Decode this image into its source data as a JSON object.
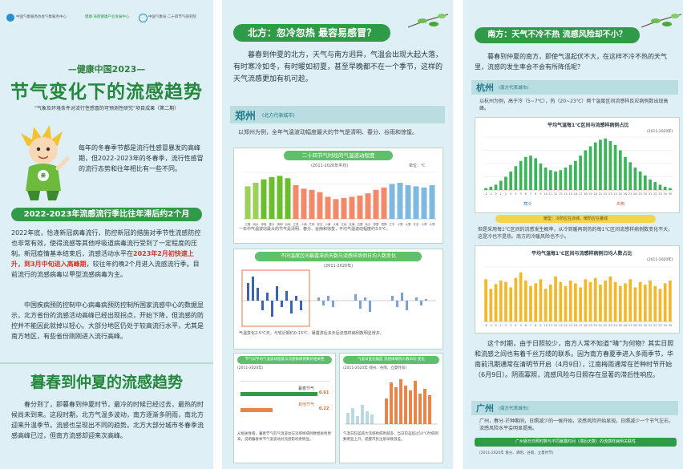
{
  "panel1": {
    "logos": [
      "中国气象服务协会气象服务中心",
      "健康·海南健康产业发展中心",
      "中国气象局·二十四节气研究院"
    ],
    "subtitle": "—健康中国2023—",
    "title": "节气变化下的流感趋势",
    "project_note": "“气象及环境条件对流行性感冒的可预测性研究”项目成果（第二期）",
    "intro": "每年的冬春季节都是流行性感冒暴发的高峰期，但2022-2023年的冬春季，流行性感冒的流行态势和往年相比有一些不同。",
    "section1_title": "2022-2023年流感流行季比往年滞后约2个月",
    "section1_text_a": "2022年底，恰逢新冠病毒流行，防控新冠的措施对季节性流感防控也非常有效，使得流感等其他呼吸道病毒流行受到了一定程度的压制。新冠疫情基本结束后，流感活动水平在",
    "section1_highlight": "2023年2月初快速上升，到3月中旬进入高峰期",
    "section1_text_b": "，较往年约晚2个月进入流感流行季。目前流行的流感病毒以甲型流感病毒为主。",
    "section1_text_c": "中国疾病预防控制中心病毒病预防控制所国家流感中心的数据显示，北方省份的流感活动高峰已经出现拐点，开始下降，但流感的防控并不能因此就掉以轻心。大部分地区仍处于较高流行水平，尤其是南方地区，有些省份刚刚进入流行高峰。",
    "section2_title": "暮春到仲夏的流感趋势",
    "section2_text": "春分到了，即暮春到仲夏时节，最冷的时候已经过去，最热的时候尚未到来。这段时期，北方气温多波动，南方逐渐多阴雨，南北方迎来升温季节。流感也呈现出不同的趋势。北方大部分城市冬春季流感高峰已过，但南方流感却迎来次高峰。",
    "mascot_badge": "秦"
  },
  "panel2": {
    "title": "北方：忽冷忽热 最容易感冒？",
    "intro": "暮春到仲夏的北方，天气与南方迥异，气温会出现大起大落，有时寒冷如冬，有时暖如初夏，甚至早晚都不在一个季节，这样的天气流感更加有机可趁。",
    "city": "郑州",
    "city_note": "(北方代表城市)",
    "city_text": "以郑州为例，全年气温波动幅度最大的节气是清明、春分、谷雨和惊蛰。",
    "chart1_title": "二十四节气时段的气温波动程度",
    "chart1_period": "(2011-2020年平均)",
    "chart1_unit": "单位：℃",
    "chart1_caption": "一年中气温波动最大的节气是清明、春分、谷雨和惊蛰，平均气温波动幅度约3.5℃。",
    "chart2_title": "不同温度区间暴露滞后天数与流感样病例日均人数变化",
    "chart2_period": "(2011-2020年)",
    "chart2_caption": "气温变化2-5℃天，与较近期约0-15℃，暴露滞后多天后流感样病例数明显增多。",
    "chart3_title": "节气日平均气温波动程度与流感样病例数的相关性",
    "chart3_period": "(2011-2020年)",
    "chart3_row1": "暮春节气",
    "chart3_row1_val": "0.61",
    "chart3_row2": "其他节气",
    "chart3_row2_val": "0.22",
    "chart3_caption": "从相关性看，暮春节气的气温波动与流感样病例数相关性更高，说明暮春季节气温波动对流感影响更明显。",
    "chart4_title": "气温日变化幅度 流感样病例人数日均 变化",
    "chart4_period": "(2011-2020年 郑州、谷雨、立夏时间)",
    "chart4_caption": "气温日较差越大流感样病例越多，当日较差超过10℃时病例数明显上升，提醒市民注意早晚温差。"
  },
  "panel3": {
    "title": "南方：天气不冷不热 流感风险却不小？",
    "intro": "暮春到仲夏的南方，即使气温起伏不大，在这样不冷不热的天气里，流感的发生率会不会有所降低呢？",
    "city1": "杭州",
    "city1_note": "(南方代表城市)",
    "city1_text": "以杭州为例，高于冷（5~7℃），热（20~23℃）两个温度区间流感样反应病例数出现高峰。",
    "chart1_title": "平均气温每1℃区间与流感样病例占比",
    "chart1_period": "(2011-2020年)",
    "cold_label": "寒冷",
    "hot_label": "炎热",
    "chart1_note": "暖型：冷防应在凉城、暖防应在暑城",
    "mid_text": "但是采用每1℃区间的流感发生概率，从冷到暖再到热的每1℃区间流感样病例数变化不大，这是冷也不是热。南方的冷暖风险也不小。",
    "chart2_title": "平均气温每1℃区间与流感样病例日均人数占比",
    "chart2_period": "(2011-2020年)",
    "main_text_a": "这个时期，由于日照较少，南方人常不知道“晴”为何物？其实日照和流感之间也有着千丝万缕的联系。因为南方春夏季进入多雨季节，华南前汛期通常在清明节开启（4月9日），江南梅雨通常在芒种时节开始（6月9日）。阴雨寡照，流感风险与日照存在显著的滞后性响应。",
    "city2": "广州",
    "city2_note": "(南方代表城市)",
    "city2_text": "广州，春分-芒种期间，日照减少的一候开始，流感风险开始显现。日照减少一个节气左右，流感风险水平会明显提高。",
    "chart3_title": "广州逐日日照时数与不同暴露时间（滞后天数）的流感样病例关联性",
    "chart3_period": "(2011-2020年 春分、清明、谷雨、立夏时节)"
  },
  "chart_data": [
    {
      "type": "bar",
      "title": "二十四节气时段的气温波动程度",
      "ylabel": "单位：℃",
      "categories": [
        "立春",
        "雨水",
        "惊蛰",
        "春分",
        "清明",
        "谷雨",
        "立夏",
        "小满",
        "芒种",
        "夏至",
        "小暑",
        "大暑",
        "立秋",
        "处暑",
        "白露",
        "秋分",
        "寒露",
        "霜降",
        "立冬",
        "小雪",
        "大雪",
        "冬至",
        "小寒",
        "大寒"
      ],
      "values": [
        2.8,
        3.1,
        3.4,
        3.6,
        3.7,
        3.5,
        2.9,
        2.6,
        2.5,
        2.3,
        1.9,
        1.7,
        1.8,
        1.9,
        2.0,
        2.2,
        2.5,
        2.7,
        3.0,
        3.1,
        2.9,
        2.8,
        2.7,
        2.9
      ],
      "ylim": [
        0,
        4
      ]
    },
    {
      "type": "bar",
      "title": "平均气温每1℃区间与流感样病例占比",
      "categories": [
        "-2",
        "-1",
        "0",
        "1",
        "2",
        "3",
        "4",
        "5",
        "6",
        "7",
        "8",
        "9",
        "10",
        "11",
        "12",
        "13",
        "14",
        "15",
        "16",
        "17",
        "18",
        "19",
        "20",
        "21",
        "22",
        "23",
        "24",
        "25",
        "26",
        "27",
        "28",
        "29",
        "30",
        "31",
        "32",
        "33",
        "34",
        "35"
      ],
      "values": [
        3,
        5,
        8,
        14,
        20,
        28,
        36,
        44,
        50,
        52,
        48,
        40,
        34,
        30,
        28,
        30,
        34,
        38,
        44,
        52,
        60,
        66,
        72,
        76,
        78,
        74,
        68,
        60,
        50,
        42,
        34,
        28,
        22,
        16,
        12,
        8,
        5,
        3
      ],
      "ylim": [
        0,
        80
      ]
    },
    {
      "type": "bar",
      "title": "平均气温每1℃区间与流感样病例日均人数占比",
      "categories": [
        "-2",
        "-1",
        "0",
        "1",
        "2",
        "3",
        "4",
        "5",
        "6",
        "7",
        "8",
        "9",
        "10",
        "11",
        "12",
        "13",
        "14",
        "15",
        "16",
        "17",
        "18",
        "19",
        "20",
        "21",
        "22",
        "23",
        "24",
        "25",
        "26",
        "27",
        "28",
        "29",
        "30",
        "31",
        "32",
        "33",
        "34",
        "35"
      ],
      "values": [
        62,
        48,
        55,
        60,
        58,
        50,
        64,
        72,
        60,
        52,
        56,
        62,
        48,
        54,
        66,
        58,
        52,
        60,
        56,
        50,
        62,
        58,
        64,
        54,
        60,
        66,
        58,
        52,
        56,
        62,
        50,
        58,
        54,
        60,
        52,
        48,
        56,
        60
      ],
      "ylim": [
        0,
        80
      ]
    }
  ]
}
